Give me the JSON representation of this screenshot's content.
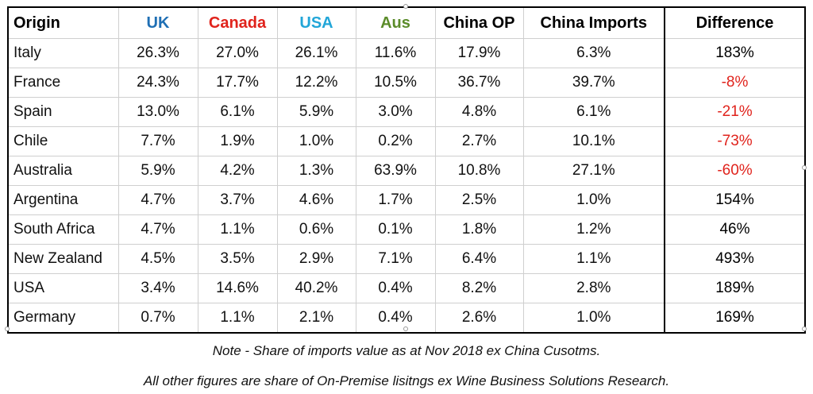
{
  "headers": [
    {
      "label": "Origin",
      "color": "#000000"
    },
    {
      "label": "UK",
      "color": "#1f6fb4"
    },
    {
      "label": "Canada",
      "color": "#e0231c"
    },
    {
      "label": "USA",
      "color": "#22a6d8"
    },
    {
      "label": "Aus",
      "color": "#5b8c2a"
    },
    {
      "label": "China OP",
      "color": "#000000"
    },
    {
      "label": "China Imports",
      "color": "#000000"
    },
    {
      "label": "Difference",
      "color": "#000000"
    }
  ],
  "rows": [
    {
      "origin": "Italy",
      "uk": "26.3%",
      "canada": "27.0%",
      "usa": "26.1%",
      "aus": "11.6%",
      "china_op": "17.9%",
      "china_imports": "6.3%",
      "difference": "183%",
      "diff_color": "#000000"
    },
    {
      "origin": "France",
      "uk": "24.3%",
      "canada": "17.7%",
      "usa": "12.2%",
      "aus": "10.5%",
      "china_op": "36.7%",
      "china_imports": "39.7%",
      "difference": "-8%",
      "diff_color": "#e0231c"
    },
    {
      "origin": "Spain",
      "uk": "13.0%",
      "canada": "6.1%",
      "usa": "5.9%",
      "aus": "3.0%",
      "china_op": "4.8%",
      "china_imports": "6.1%",
      "difference": "-21%",
      "diff_color": "#e0231c"
    },
    {
      "origin": "Chile",
      "uk": "7.7%",
      "canada": "1.9%",
      "usa": "1.0%",
      "aus": "0.2%",
      "china_op": "2.7%",
      "china_imports": "10.1%",
      "difference": "-73%",
      "diff_color": "#e0231c"
    },
    {
      "origin": "Australia",
      "uk": "5.9%",
      "canada": "4.2%",
      "usa": "1.3%",
      "aus": "63.9%",
      "china_op": "10.8%",
      "china_imports": "27.1%",
      "difference": "-60%",
      "diff_color": "#e0231c"
    },
    {
      "origin": "Argentina",
      "uk": "4.7%",
      "canada": "3.7%",
      "usa": "4.6%",
      "aus": "1.7%",
      "china_op": "2.5%",
      "china_imports": "1.0%",
      "difference": "154%",
      "diff_color": "#000000"
    },
    {
      "origin": "South Africa",
      "uk": "4.7%",
      "canada": "1.1%",
      "usa": "0.6%",
      "aus": "0.1%",
      "china_op": "1.8%",
      "china_imports": "1.2%",
      "difference": "46%",
      "diff_color": "#000000"
    },
    {
      "origin": "New Zealand",
      "uk": "4.5%",
      "canada": "3.5%",
      "usa": "2.9%",
      "aus": "7.1%",
      "china_op": "6.4%",
      "china_imports": "1.1%",
      "difference": "493%",
      "diff_color": "#000000"
    },
    {
      "origin": "USA",
      "uk": "3.4%",
      "canada": "14.6%",
      "usa": "40.2%",
      "aus": "0.4%",
      "china_op": "8.2%",
      "china_imports": "2.8%",
      "difference": "189%",
      "diff_color": "#000000"
    },
    {
      "origin": "Germany",
      "uk": "0.7%",
      "canada": "1.1%",
      "usa": "2.1%",
      "aus": "0.4%",
      "china_op": "2.6%",
      "china_imports": "1.0%",
      "difference": "169%",
      "diff_color": "#000000"
    }
  ],
  "notes": {
    "line1": "Note - Share of imports value as at Nov 2018 ex China Cusotms.",
    "line2": "All other figures are share of On-Premise lisitngs ex Wine Business Solutions Research."
  }
}
